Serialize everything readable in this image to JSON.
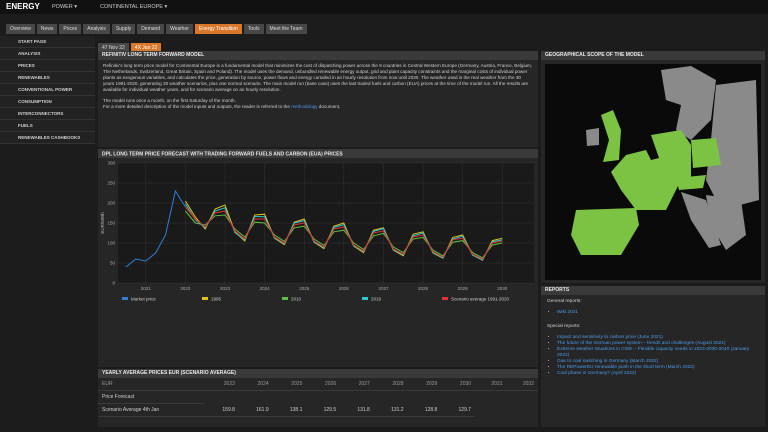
{
  "header": {
    "app": "ENERGY",
    "menus": [
      "POWER ▾",
      "CONTINENTAL EUROPE ▾"
    ]
  },
  "tabs": [
    "Overview",
    "News",
    "Prices",
    "Analysis",
    "Supply",
    "Demand",
    "Weather",
    "Energy Transition",
    "Tools",
    "Meet the Team"
  ],
  "sidebar": [
    "START PAGE",
    "ANALYSIS",
    "PRICES",
    "RENEWABLES",
    "CONVENTIONAL POWER",
    "CONSUMPTION",
    "INTERCONNECTORS",
    "FUELS",
    "RENEWABLES CASHBOOKS"
  ],
  "subtabs": [
    "47 Nov 22",
    "4X Jan 22"
  ],
  "intro": {
    "title": "REFINITIV LONG TERM FORWARD MODEL",
    "p1": "Refinitiv's long term price model for Continental Europe is a fundamental model that minimizes the cost of dispatching power across the 9 countries in Central Western Europe (Germany, Austria, France, Belgium, The Netherlands, Switzerland, Great Britain, Spain and Poland). The model uses the demand, unbundled renewable energy output, grid and plant capacity constraints and the marginal costs of individual power plants as exogenous variables, and calculates the price, generation by source, power flows and energy curtailed in an hourly resolution from now until 2030. The weather used is the real weather from the 30 years 1991-2020, generating 30 weather scenarios, plus one normal scenario. The main model run (base case) uses the last traded fuels and carbon (EUA) prices at the time of the model run. All the results are available for individual weather years, and for scenario average on an hourly resolution.",
    "p2": "The model runs once a month, on the first Saturday of the month.",
    "p3_before": "For a more detailed description of the model inputs and outputs, the reader is referred to the ",
    "p3_link": "methodology",
    "p3_after": " document."
  },
  "chart_data": {
    "type": "line",
    "title": "DPL LONG TERM PRICE FORECAST WITH TRADING FORWARD FUELS AND CARBON (EUA) PRICES",
    "y_label": "EUR/MWh",
    "xlim": [
      2020.3,
      2030.8
    ],
    "xticks": [
      2021,
      2022,
      2023,
      2024,
      2025,
      2026,
      2027,
      2028,
      2029,
      2030
    ],
    "ylim": [
      0,
      300
    ],
    "yticks": [
      0,
      50,
      100,
      150,
      200,
      250,
      300
    ],
    "grid": true,
    "series": [
      {
        "name": "Market price",
        "color": "#2f7fd6",
        "x": [
          2020.5,
          2020.75,
          2021,
          2021.25,
          2021.5,
          2021.75,
          2022
        ],
        "values": [
          40,
          60,
          55,
          75,
          120,
          230,
          190
        ]
      },
      {
        "name": "1995",
        "color": "#e0c020",
        "x": [
          2022,
          2022.25,
          2022.5,
          2022.75,
          2023,
          2023.25,
          2023.5,
          2023.75,
          2024,
          2024.25,
          2024.5,
          2024.75,
          2025,
          2025.25,
          2025.5,
          2025.75,
          2026,
          2026.25,
          2026.5,
          2026.75,
          2027,
          2027.25,
          2027.5,
          2027.75,
          2028,
          2028.25,
          2028.5,
          2028.75,
          2029,
          2029.25,
          2029.5,
          2029.75,
          2030
        ],
        "values": [
          205,
          165,
          135,
          185,
          195,
          128,
          105,
          170,
          172,
          112,
          96,
          152,
          160,
          102,
          86,
          142,
          150,
          92,
          76,
          132,
          138,
          82,
          68,
          122,
          128,
          75,
          62,
          114,
          120,
          70,
          57,
          106,
          112
        ]
      },
      {
        "name": "2010",
        "color": "#5cc040",
        "x": [
          2022,
          2022.25,
          2022.5,
          2022.75,
          2023,
          2023.25,
          2023.5,
          2023.75,
          2024,
          2024.25,
          2024.5,
          2024.75,
          2025,
          2025.25,
          2025.5,
          2025.75,
          2026,
          2026.25,
          2026.5,
          2026.75,
          2027,
          2027.25,
          2027.5,
          2027.75,
          2028,
          2028.25,
          2028.5,
          2028.75,
          2029,
          2029.25,
          2029.5,
          2029.75,
          2030
        ],
        "values": [
          180,
          150,
          145,
          168,
          170,
          135,
          115,
          152,
          150,
          120,
          104,
          138,
          142,
          110,
          94,
          128,
          132,
          100,
          84,
          118,
          124,
          90,
          76,
          110,
          114,
          82,
          68,
          102,
          106,
          76,
          63,
          95,
          100
        ]
      },
      {
        "name": "2019",
        "color": "#30c8d0",
        "x": [
          2022,
          2022.25,
          2022.5,
          2022.75,
          2023,
          2023.25,
          2023.5,
          2023.75,
          2024,
          2024.25,
          2024.5,
          2024.75,
          2025,
          2025.25,
          2025.5,
          2025.75,
          2026,
          2026.25,
          2026.5,
          2026.75,
          2027,
          2027.25,
          2027.5,
          2027.75,
          2028,
          2028.25,
          2028.5,
          2028.75,
          2029,
          2029.25,
          2029.5,
          2029.75,
          2030
        ],
        "values": [
          198,
          158,
          138,
          180,
          188,
          126,
          108,
          166,
          166,
          113,
          98,
          150,
          156,
          103,
          88,
          139,
          146,
          93,
          78,
          129,
          136,
          83,
          70,
          118,
          125,
          76,
          63,
          110,
          117,
          70,
          58,
          103,
          108
        ]
      },
      {
        "name": "Scenario average 1991-2020",
        "color": "#e03030",
        "x": [
          2022,
          2022.25,
          2022.5,
          2022.75,
          2023,
          2023.25,
          2023.5,
          2023.75,
          2024,
          2024.25,
          2024.5,
          2024.75,
          2025,
          2025.25,
          2025.5,
          2025.75,
          2026,
          2026.25,
          2026.5,
          2026.75,
          2027,
          2027.25,
          2027.5,
          2027.75,
          2028,
          2028.25,
          2028.5,
          2028.75,
          2029,
          2029.25,
          2029.5,
          2029.75,
          2030
        ],
        "values": [
          190,
          160,
          140,
          175,
          180,
          130,
          110,
          160,
          160,
          115,
          100,
          145,
          150,
          105,
          90,
          135,
          140,
          95,
          80,
          125,
          130,
          85,
          72,
          115,
          120,
          78,
          65,
          108,
          112,
          72,
          60,
          100,
          105
        ]
      }
    ]
  },
  "table": {
    "title": "YEARLY AVERAGE PRICES EUR (SCENARIO AVERAGE)",
    "header": [
      "EUR",
      "2023",
      "2024",
      "2025",
      "2026",
      "2027",
      "2028",
      "2029",
      "2030",
      "2031",
      "2032"
    ],
    "rows": [
      [
        "Price Forecast"
      ],
      [
        "Scenario Average 4th Jan",
        "159.8",
        "161.9",
        "138.1",
        "129.5",
        "131.8",
        "131.2",
        "128.8",
        "129.7"
      ]
    ]
  },
  "map": {
    "title": "GEOGRAPHICAL SCOPE OF THE MODEL"
  },
  "reports": {
    "title": "REPORTS",
    "general_label": "General reports:",
    "general": [
      "Wiki 2021"
    ],
    "special_label": "Special reports:",
    "special": [
      "Impact and sensitivity to carbon price (June 2021)",
      "The future of the German power system – trends and challenges (August 2021)",
      "Extreme weather situations in CWE – Flexible capacity needs in 2023-2030-2040 (January 2022)",
      "Gas to coal switching in Germany (March 2022)",
      "The REPowerEU renewable push in the short term (March 2022)",
      "Coal phase in Germany? (April 2022)"
    ]
  }
}
